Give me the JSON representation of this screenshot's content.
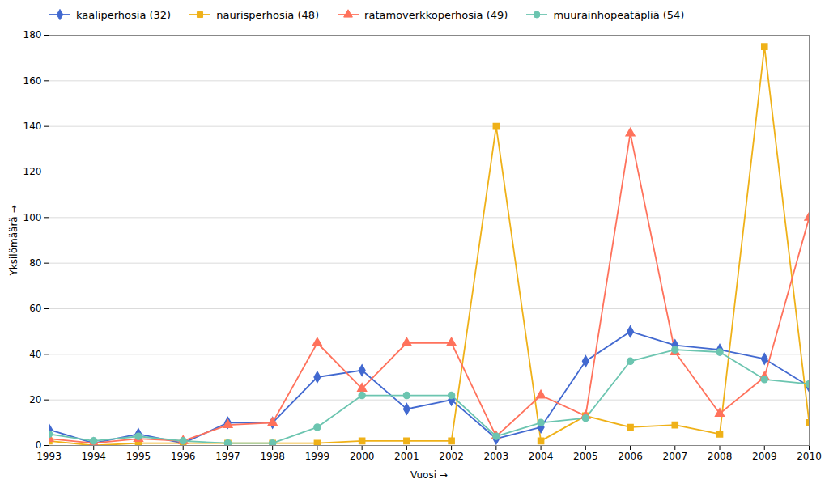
{
  "chart_data": {
    "type": "line",
    "xlabel": "Vuosi",
    "ylabel": "Yksilömäärä",
    "x": [
      1993,
      1994,
      1995,
      1996,
      1997,
      1998,
      1999,
      2000,
      2001,
      2002,
      2003,
      2004,
      2005,
      2006,
      2007,
      2008,
      2009,
      2010
    ],
    "series": [
      {
        "name": "kaaliperhosia (32)",
        "marker": "diamond",
        "values": [
          7,
          1,
          5,
          1,
          10,
          10,
          30,
          33,
          16,
          20,
          3,
          8,
          37,
          50,
          44,
          42,
          38,
          26
        ]
      },
      {
        "name": "naurisperhosia (48)",
        "marker": "square",
        "values": [
          2,
          0,
          1,
          1,
          1,
          1,
          1,
          2,
          2,
          2,
          140,
          2,
          13,
          8,
          9,
          5,
          175,
          10
        ]
      },
      {
        "name": "ratamoverkkoperhosia (49)",
        "marker": "triangle",
        "values": [
          3,
          1,
          3,
          2,
          9,
          10,
          45,
          25,
          45,
          45,
          4,
          22,
          13,
          137,
          41,
          14,
          30,
          100
        ]
      },
      {
        "name": "muurainhopeatäpliä (54)",
        "marker": "circle",
        "values": [
          5,
          2,
          4,
          2,
          1,
          1,
          8,
          22,
          22,
          22,
          4,
          10,
          12,
          37,
          42,
          41,
          29,
          27
        ]
      }
    ],
    "xlim": [
      1993,
      2010
    ],
    "xticks": [
      1993,
      1994,
      1995,
      1996,
      1997,
      1998,
      1999,
      2000,
      2001,
      2002,
      2003,
      2004,
      2005,
      2006,
      2007,
      2008,
      2009,
      2010
    ],
    "ylim": [
      0,
      180
    ],
    "yticks": [
      0,
      20,
      40,
      60,
      80,
      100,
      120,
      140,
      160,
      180
    ],
    "grid": true,
    "legend": "upper left"
  }
}
